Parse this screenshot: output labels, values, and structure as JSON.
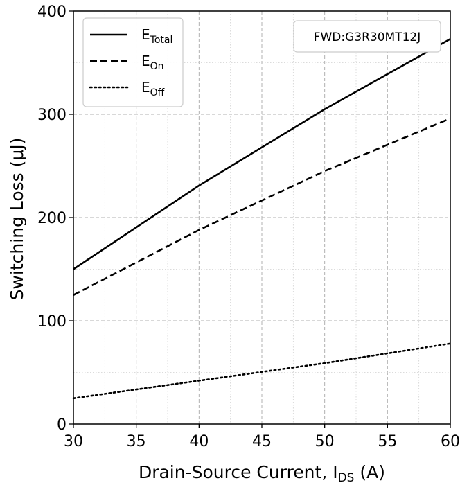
{
  "chart_data": {
    "type": "line",
    "title": "",
    "xlabel": "Drain-Source Current, I",
    "xlabel_sub": "DS",
    "xlabel_tail": " (A)",
    "ylabel": "Switching Loss (μJ)",
    "xlim": [
      30,
      60
    ],
    "ylim": [
      0,
      400
    ],
    "x_ticks": [
      30,
      35,
      40,
      45,
      50,
      55,
      60
    ],
    "y_ticks": [
      0,
      100,
      200,
      300,
      400
    ],
    "x_minor_step": 2.5,
    "y_minor_step": 50,
    "grid": true,
    "legend_position": "top-left",
    "annotation": "FWD:G3R30MT12J",
    "series": [
      {
        "name": "E",
        "name_sub": "Total",
        "style": "solid",
        "color": "#000000",
        "x": [
          30,
          40,
          50,
          60
        ],
        "y": [
          150,
          231,
          305,
          373
        ]
      },
      {
        "name": "E",
        "name_sub": "On",
        "style": "dashed",
        "color": "#000000",
        "x": [
          30,
          40,
          50,
          60
        ],
        "y": [
          125,
          188,
          245,
          296
        ]
      },
      {
        "name": "E",
        "name_sub": "Off",
        "style": "dotted",
        "color": "#000000",
        "x": [
          30,
          40,
          50,
          60
        ],
        "y": [
          25,
          42,
          59,
          78
        ]
      }
    ]
  }
}
